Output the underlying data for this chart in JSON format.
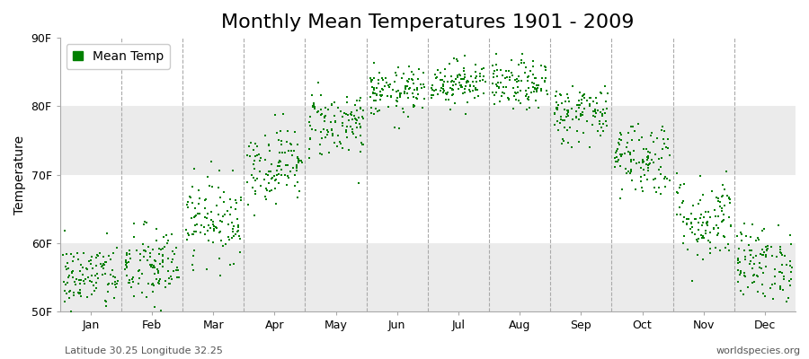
{
  "title": "Monthly Mean Temperatures 1901 - 2009",
  "ylabel": "Temperature",
  "dot_color": "#008000",
  "legend_label": "Mean Temp",
  "fig_bg_color": "#FFFFFF",
  "plot_bg_color": "#FFFFFF",
  "band_color": "#EBEBEB",
  "ylim": [
    50,
    90
  ],
  "yticks": [
    50,
    60,
    70,
    80,
    90
  ],
  "ytick_labels": [
    "50F",
    "60F",
    "70F",
    "80F",
    "90F"
  ],
  "months": [
    "Jan",
    "Feb",
    "Mar",
    "Apr",
    "May",
    "Jun",
    "Jul",
    "Aug",
    "Sep",
    "Oct",
    "Nov",
    "Dec"
  ],
  "month_means": [
    55.0,
    56.5,
    63.5,
    71.5,
    77.5,
    82.0,
    83.5,
    83.0,
    79.0,
    72.5,
    63.5,
    57.0
  ],
  "month_stds": [
    2.5,
    3.0,
    3.0,
    2.8,
    2.5,
    1.8,
    1.6,
    1.8,
    2.2,
    2.8,
    3.2,
    2.8
  ],
  "n_years": 109,
  "subtitle_lat": "Latitude 30.25 Longitude 32.25",
  "watermark": "worldspecies.org",
  "title_fontsize": 16,
  "label_fontsize": 10,
  "tick_fontsize": 9,
  "dot_size": 4
}
